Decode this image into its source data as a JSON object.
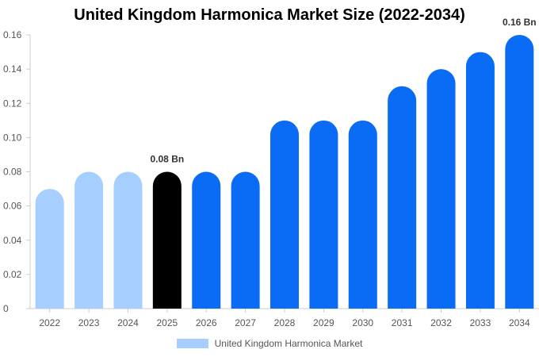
{
  "chart_data": {
    "type": "bar",
    "title": "United Kingdom Harmonica Market Size (2022-2034)",
    "categories": [
      "2022",
      "2023",
      "2024",
      "2025",
      "2026",
      "2027",
      "2028",
      "2029",
      "2030",
      "2031",
      "2032",
      "2033",
      "2034"
    ],
    "series": [
      {
        "name": "United Kingdom Harmonica Market",
        "values": [
          0.07,
          0.08,
          0.08,
          0.08,
          0.08,
          0.08,
          0.11,
          0.11,
          0.11,
          0.13,
          0.14,
          0.15,
          0.16
        ]
      }
    ],
    "bar_colors": [
      "#a6cfff",
      "#a6cfff",
      "#a6cfff",
      "#000000",
      "#0a6cf5",
      "#0a6cf5",
      "#0a6cf5",
      "#0a6cf5",
      "#0a6cf5",
      "#0a6cf5",
      "#0a6cf5",
      "#0a6cf5",
      "#0a6cf5"
    ],
    "data_labels": [
      {
        "category": "2025",
        "text": "0.08 Bn"
      },
      {
        "category": "2034",
        "text": "0.16 Bn"
      }
    ],
    "y_ticks": [
      "0",
      "0.02",
      "0.04",
      "0.06",
      "0.08",
      "0.10",
      "0.12",
      "0.14",
      "0.16"
    ],
    "ylim": [
      0,
      0.16
    ],
    "grid": false,
    "legend_position": "bottom",
    "legend_color": "#a6cfff"
  }
}
